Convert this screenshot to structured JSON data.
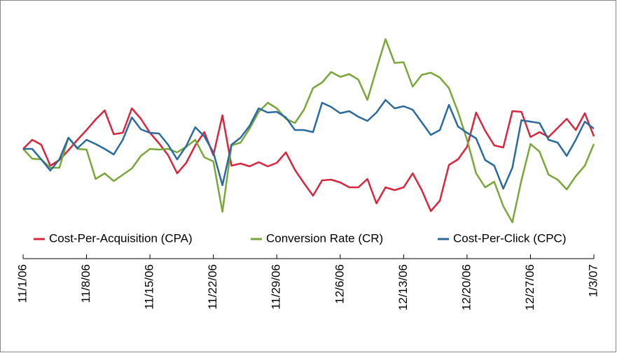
{
  "chart_data": {
    "type": "line",
    "categories": [
      "11/1/06",
      null,
      null,
      null,
      null,
      null,
      null,
      "11/8/06",
      null,
      null,
      null,
      null,
      null,
      null,
      "11/15/06",
      null,
      null,
      null,
      null,
      null,
      null,
      "11/22/06",
      null,
      null,
      null,
      null,
      null,
      null,
      "11/29/06",
      null,
      null,
      null,
      null,
      null,
      null,
      "12/6/06",
      null,
      null,
      null,
      null,
      null,
      null,
      "12/13/06",
      null,
      null,
      null,
      null,
      null,
      null,
      "12/20/06",
      null,
      null,
      null,
      null,
      null,
      null,
      "12/27/06",
      null,
      null,
      null,
      null,
      null,
      null,
      "1/3/07"
    ],
    "series": [
      {
        "name": "Cost-Per-Acquisition (CPA)",
        "color": "#d9263f",
        "values": [
          117,
          130,
          123,
          93,
          101,
          115,
          130,
          144,
          159,
          172,
          138,
          140,
          175,
          160,
          140,
          125,
          108,
          82,
          97,
          122,
          141,
          108,
          165,
          93,
          96,
          92,
          98,
          92,
          97,
          112,
          87,
          68,
          50,
          72,
          73,
          69,
          62,
          62,
          74,
          39,
          62,
          58,
          62,
          82,
          58,
          28,
          43,
          94,
          102,
          120,
          169,
          143,
          122,
          119,
          171,
          170,
          134,
          141,
          134,
          147,
          160,
          144,
          168,
          135
        ]
      },
      {
        "name": "Conversion Rate (CR)",
        "color": "#7aa73a",
        "values": [
          117,
          103,
          102,
          90,
          90,
          133,
          117,
          116,
          74,
          82,
          71,
          80,
          89,
          107,
          117,
          116,
          117,
          112,
          120,
          130,
          105,
          99,
          27,
          122,
          126,
          146,
          170,
          183,
          175,
          160,
          154,
          173,
          204,
          212,
          227,
          220,
          224,
          216,
          187,
          231,
          274,
          240,
          241,
          206,
          223,
          226,
          219,
          204,
          170,
          130,
          82,
          62,
          70,
          35,
          12,
          72,
          124,
          113,
          80,
          73,
          59,
          78,
          93,
          124
        ]
      },
      {
        "name": "Cost-Per-Click (CPC)",
        "color": "#2a6a9c",
        "values": [
          117,
          117,
          102,
          86,
          102,
          133,
          118,
          130,
          124,
          117,
          109,
          130,
          162,
          145,
          140,
          139,
          123,
          102,
          121,
          148,
          135,
          112,
          65,
          123,
          133,
          150,
          175,
          169,
          170,
          162,
          144,
          144,
          141,
          183,
          177,
          168,
          171,
          163,
          157,
          169,
          187,
          175,
          178,
          173,
          155,
          137,
          144,
          180,
          149,
          140,
          132,
          101,
          93,
          60,
          90,
          158,
          156,
          154,
          130,
          126,
          107,
          130,
          156,
          146
        ]
      }
    ],
    "ylim": [
      0,
      300
    ],
    "legend": "bottom"
  }
}
